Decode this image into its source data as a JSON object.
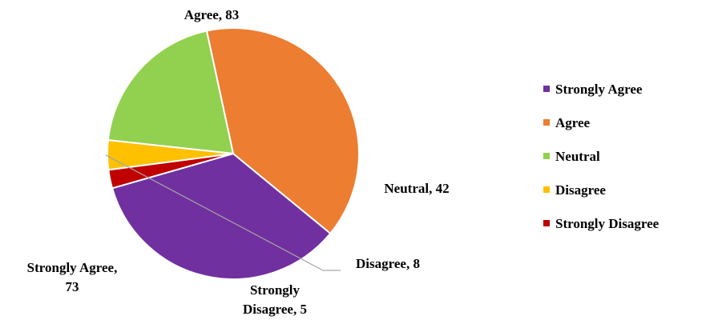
{
  "chart_data": {
    "type": "pie",
    "categories": [
      "Strongly Agree",
      "Agree",
      "Neutral",
      "Disagree",
      "Strongly Disagree"
    ],
    "values": [
      73,
      83,
      42,
      8,
      5
    ],
    "colors": [
      "#7030A0",
      "#ED7D31",
      "#92D050",
      "#FFC000",
      "#C00000"
    ],
    "data_labels": [
      [
        "Strongly Agree,",
        "73"
      ],
      [
        "Agree, 83"
      ],
      [
        "Neutral, 42"
      ],
      [
        "Disagree, 8"
      ],
      [
        "Strongly",
        "Disagree, 5"
      ]
    ],
    "legend": {
      "position": "right",
      "entries": [
        "Strongly Agree",
        "Agree",
        "Neutral",
        "Disagree",
        "Strongly Disagree"
      ]
    },
    "title": "",
    "start_angle_deg": 254
  }
}
